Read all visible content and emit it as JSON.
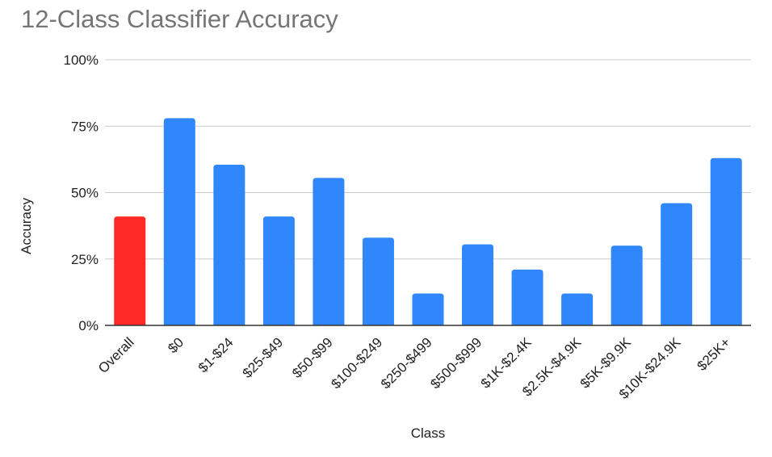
{
  "chart_data": {
    "type": "bar",
    "title": "12-Class Classifier Accuracy",
    "xlabel": "Class",
    "ylabel": "Accuracy",
    "categories": [
      "Overall",
      "$0",
      "$1-$24",
      "$25-$49",
      "$50-$99",
      "$100-$249",
      "$250-$499",
      "$500-$999",
      "$1K-$2.4K",
      "$2.5K-$4.9K",
      "$5K-$9.9K",
      "$10K-$24.9K",
      "$25K+"
    ],
    "values": [
      0.41,
      0.78,
      0.605,
      0.41,
      0.555,
      0.33,
      0.12,
      0.305,
      0.21,
      0.12,
      0.3,
      0.46,
      0.63
    ],
    "ylim": [
      0,
      1
    ],
    "yticks": [
      0,
      0.25,
      0.5,
      0.75,
      1
    ],
    "ytick_labels": [
      "0%",
      "25%",
      "50%",
      "75%",
      "100%"
    ],
    "grid": true,
    "legend": "none",
    "colors": {
      "highlight": "#ff2a25",
      "default": "#2f87fb",
      "grid": "#cccccc",
      "axis": "#333333"
    }
  }
}
